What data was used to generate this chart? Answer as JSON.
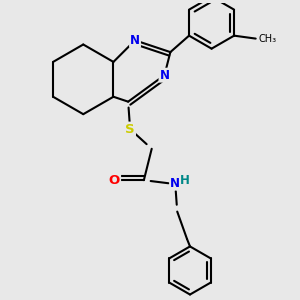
{
  "bg_color": "#e8e8e8",
  "bond_color": "#000000",
  "N_color": "#0000ee",
  "S_color": "#cccc00",
  "O_color": "#ff0000",
  "NH_color": "#008888",
  "line_width": 1.5,
  "font_size": 8.5,
  "xlim": [
    0.0,
    3.0
  ],
  "ylim": [
    0.0,
    3.0
  ]
}
